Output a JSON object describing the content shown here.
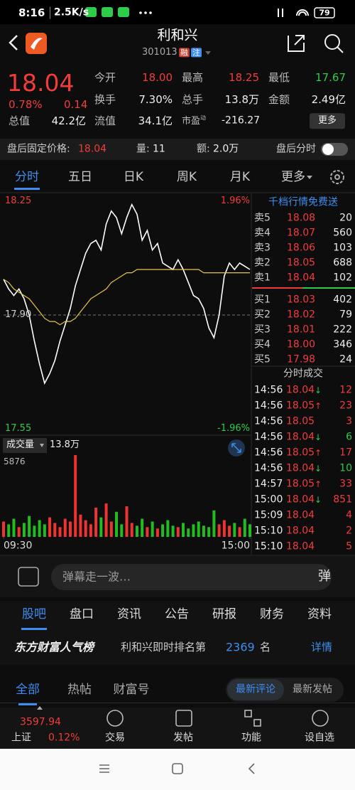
{
  "status_bar": {
    "time": "8:16",
    "speed": "2.5K/s",
    "battery": "79"
  },
  "header": {
    "title": "利和兴",
    "code": "301013",
    "tags": [
      "融",
      "注"
    ]
  },
  "quote": {
    "price": "18.04",
    "change_pct": "0.78%",
    "change": "0.14",
    "stats": [
      {
        "label": "今开",
        "value": "18.00"
      },
      {
        "label": "最高",
        "value": "18.25"
      },
      {
        "label": "最低",
        "value": "17.67"
      },
      {
        "label": "换手",
        "value": "7.30%"
      },
      {
        "label": "总手",
        "value": "13.8万"
      },
      {
        "label": "金额",
        "value": "2.49亿"
      },
      {
        "label": "总值",
        "value": "42.2亿"
      },
      {
        "label": "流值",
        "value": "34.1亿"
      },
      {
        "label": "市盈",
        "sup": "动",
        "value": "-216.27"
      }
    ],
    "more_button": "更多"
  },
  "after_hours": {
    "price_label": "盘后固定价格:",
    "price": "18.04",
    "volume_label": "量:",
    "volume": "11",
    "amount_label": "额:",
    "amount": "2.0万",
    "toggle_label": "盘后分时"
  },
  "chart_tabs": [
    "分时",
    "五日",
    "日K",
    "周K",
    "月K",
    "更多"
  ],
  "chart_data": [
    {
      "type": "line",
      "x": [
        0,
        5,
        10,
        15,
        20,
        25,
        30,
        35,
        40,
        45,
        50,
        55,
        60,
        65,
        70,
        75,
        80,
        85,
        90,
        95,
        100,
        105,
        110,
        115,
        120,
        125,
        130,
        135,
        140,
        145,
        150,
        155,
        160,
        165,
        170,
        175,
        180,
        185,
        190,
        195,
        200,
        205,
        210,
        215,
        220,
        225,
        230,
        235,
        240
      ],
      "xlim": [
        0,
        240
      ],
      "ylim": [
        17.55,
        18.25
      ],
      "yticks": [
        17.55,
        {
          "value": 17.9,
          "label": "17.90"
        },
        18.25
      ],
      "y2lim": [
        -1.96,
        1.96
      ],
      "y2ticks": [
        {
          "value": -1.96,
          "label": "-1.96%"
        },
        {
          "value": 1.96,
          "label": "1.96%"
        }
      ],
      "series": [
        {
          "color": "#ffffff",
          "values": [
            18.01,
            17.98,
            17.96,
            17.98,
            17.95,
            17.9,
            17.82,
            17.75,
            17.69,
            17.72,
            17.76,
            17.82,
            17.87,
            17.92,
            17.99,
            18.04,
            18.09,
            18.12,
            18.13,
            18.1,
            18.18,
            18.22,
            18.2,
            18.15,
            18.2,
            18.24,
            18.21,
            18.13,
            18.16,
            18.1,
            18.12,
            18.06,
            18.05,
            18.04,
            18.07,
            18.04,
            18.0,
            17.96,
            17.95,
            17.92,
            17.86,
            17.83,
            17.9,
            18.02,
            18.06,
            18.04,
            18.06,
            18.05,
            18.04
          ]
        },
        {
          "color": "#e8c547",
          "values": [
            18.01,
            18.0,
            17.98,
            17.97,
            17.96,
            17.95,
            17.93,
            17.91,
            17.89,
            17.88,
            17.88,
            17.87,
            17.88,
            17.88,
            17.89,
            17.91,
            17.93,
            17.95,
            17.96,
            17.97,
            17.98,
            18.0,
            18.01,
            18.02,
            18.03,
            18.03,
            18.04,
            18.04,
            18.04,
            18.04,
            18.04,
            18.04,
            18.04,
            18.04,
            18.04,
            18.04,
            18.04,
            18.04,
            18.04,
            18.03,
            18.03,
            18.03,
            18.03,
            18.03,
            18.03,
            18.03,
            18.03,
            18.03,
            18.03
          ]
        }
      ]
    },
    {
      "type": "bar",
      "title": "成交量",
      "total": "13.8万",
      "x": [
        0,
        5,
        10,
        15,
        20,
        25,
        30,
        35,
        40,
        45,
        50,
        55,
        60,
        65,
        70,
        75,
        80,
        85,
        90,
        95,
        100,
        105,
        110,
        115,
        120,
        125,
        130,
        135,
        140,
        145,
        150,
        155,
        160,
        165,
        170,
        175,
        180,
        185,
        190,
        195,
        200,
        205,
        210,
        215,
        220,
        225,
        230,
        235,
        240
      ],
      "xlim": [
        0,
        240
      ],
      "xticks": [
        {
          "value": 0,
          "label": "09:30"
        },
        {
          "value": 240,
          "label": "15:00"
        }
      ],
      "ylim": [
        0,
        5876
      ],
      "yticks": [
        5876
      ],
      "values": [
        1100,
        900,
        1300,
        700,
        1000,
        1500,
        800,
        1200,
        900,
        1400,
        1000,
        700,
        1300,
        1100,
        5876,
        1600,
        1200,
        900,
        2100,
        1400,
        2400,
        1100,
        1800,
        900,
        2200,
        1000,
        800,
        1300,
        700,
        1100,
        600,
        900,
        1200,
        800,
        700,
        1000,
        600,
        900,
        1100,
        800,
        700,
        1900,
        900,
        1200,
        800,
        1000,
        700,
        1300,
        900
      ],
      "colors": [
        "#e33",
        "#2b2",
        "#2b2",
        "#e33",
        "#2b2",
        "#2b2",
        "#2b2",
        "#2b2",
        "#2b2",
        "#e33",
        "#e33",
        "#e33",
        "#e33",
        "#e33",
        "#e33",
        "#e33",
        "#e33",
        "#e33",
        "#e33",
        "#2b2",
        "#e33",
        "#e33",
        "#2b2",
        "#2b2",
        "#e33",
        "#e33",
        "#2b2",
        "#2b2",
        "#e33",
        "#2b2",
        "#e33",
        "#2b2",
        "#2b2",
        "#2b2",
        "#e33",
        "#2b2",
        "#2b2",
        "#2b2",
        "#2b2",
        "#2b2",
        "#2b2",
        "#2b2",
        "#e33",
        "#e33",
        "#e33",
        "#2b2",
        "#e33",
        "#2b2",
        "#2b2"
      ]
    }
  ],
  "order_book": {
    "banner": "千档行情免费送",
    "asks": [
      {
        "label": "卖5",
        "price": "18.08",
        "volume": "20"
      },
      {
        "label": "卖4",
        "price": "18.07",
        "volume": "560"
      },
      {
        "label": "卖3",
        "price": "18.06",
        "volume": "103"
      },
      {
        "label": "卖2",
        "price": "18.05",
        "volume": "688"
      },
      {
        "label": "卖1",
        "price": "18.04",
        "volume": "102"
      }
    ],
    "bids": [
      {
        "label": "买1",
        "price": "18.03",
        "volume": "402"
      },
      {
        "label": "买2",
        "price": "18.02",
        "volume": "79"
      },
      {
        "label": "买3",
        "price": "18.01",
        "volume": "222"
      },
      {
        "label": "买4",
        "price": "18.00",
        "volume": "346"
      },
      {
        "label": "买5",
        "price": "17.98",
        "volume": "24"
      }
    ]
  },
  "trades": {
    "title": "分时成交",
    "rows": [
      {
        "time": "14:56",
        "price": "18.04",
        "arrow": "↓",
        "volume": "12",
        "color": "#f23c3c"
      },
      {
        "time": "14:56",
        "price": "18.05",
        "arrow": "↑",
        "volume": "23",
        "color": "#f23c3c"
      },
      {
        "time": "14:56",
        "price": "18.05",
        "volume": "3",
        "color": "#f23c3c"
      },
      {
        "time": "14:56",
        "price": "18.04",
        "arrow": "↓",
        "volume": "6",
        "color": "#2ecc4a"
      },
      {
        "time": "14:56",
        "price": "18.05",
        "arrow": "↑",
        "volume": "17",
        "color": "#f23c3c"
      },
      {
        "time": "14:56",
        "price": "18.04",
        "arrow": "↓",
        "volume": "10",
        "color": "#2ecc4a"
      },
      {
        "time": "14:57",
        "price": "18.05",
        "arrow": "↑",
        "volume": "33",
        "color": "#f23c3c"
      },
      {
        "time": "15:00",
        "price": "18.04",
        "arrow": "↓",
        "volume": "851",
        "color": "#f23c3c"
      },
      {
        "time": "15:09",
        "price": "18.04",
        "volume": "4",
        "color": "#f23c3c"
      },
      {
        "time": "15:10",
        "price": "18.04",
        "volume": "2",
        "color": "#f23c3c"
      },
      {
        "time": "15:10",
        "price": "18.04",
        "volume": "5",
        "color": "#f23c3c"
      }
    ]
  },
  "comment_placeholder": "弹幕走一波…",
  "comment_button": "弹",
  "section_tabs": [
    "股吧",
    "盘口",
    "资讯",
    "公告",
    "研报",
    "财务",
    "资料"
  ],
  "ranking": {
    "brand": "东方财富人气榜",
    "text": "利和兴即时排名第",
    "rank": "2369",
    "suffix": "名",
    "link": "详情"
  },
  "feed_tabs": [
    "全部",
    "热帖",
    "财富号"
  ],
  "sort_tabs": [
    "最新评论",
    "最新发帖"
  ],
  "bottom_bar": {
    "index_value": "3597.94",
    "index_name": "上证",
    "index_change": "0.12%",
    "actions": [
      "交易",
      "发帖",
      "功能",
      "设自选"
    ]
  }
}
